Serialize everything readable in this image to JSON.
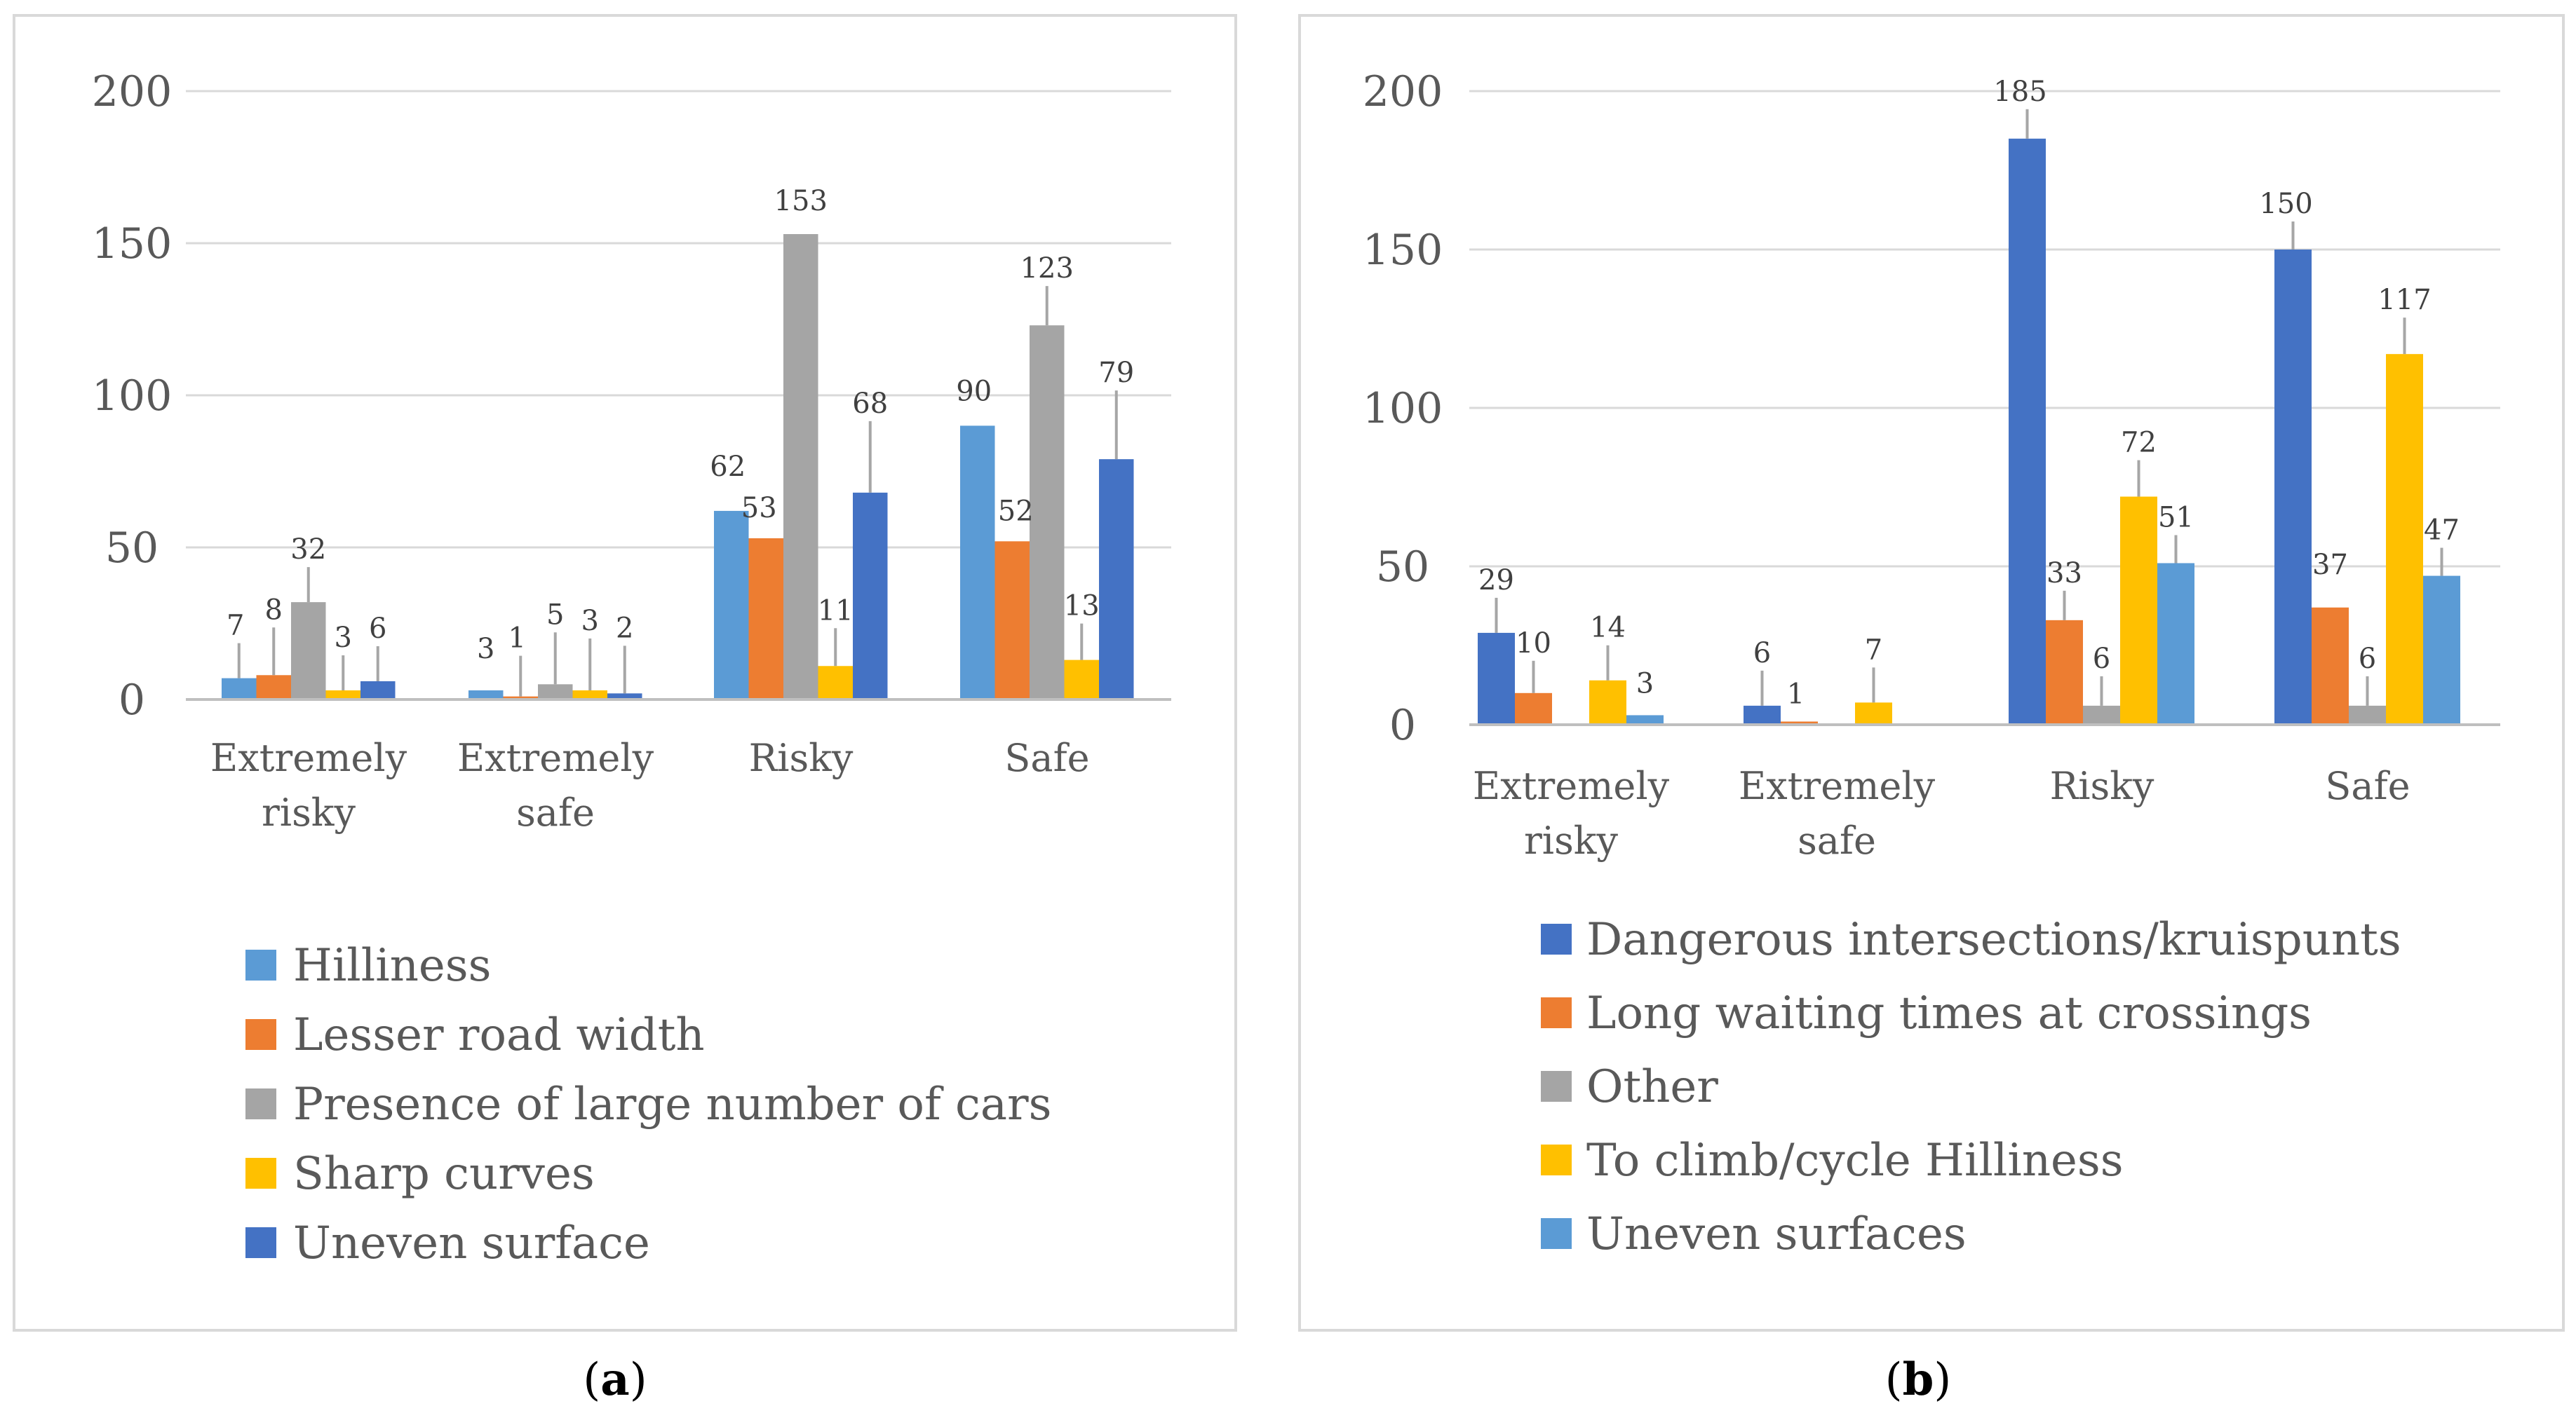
{
  "captions": {
    "a_open": "(",
    "a_letter": "a",
    "a_close": ")",
    "b_open": "(",
    "b_letter": "b",
    "b_close": ")"
  },
  "chart_data": [
    {
      "id": "a",
      "type": "bar",
      "categories": [
        [
          "Extremely",
          "risky"
        ],
        [
          "Extremely",
          "safe"
        ],
        [
          "Risky"
        ],
        [
          "Safe"
        ]
      ],
      "yticks": [
        0,
        50,
        100,
        150,
        200
      ],
      "ylim": [
        0,
        200
      ],
      "series": [
        {
          "name": "Hilliness",
          "color": "#5B9BD5",
          "values": [
            7,
            3,
            62,
            90
          ]
        },
        {
          "name": "Lesser road width",
          "color": "#ED7D31",
          "values": [
            8,
            1,
            53,
            52
          ]
        },
        {
          "name": "Presence of large number of cars",
          "color": "#A5A5A5",
          "values": [
            32,
            5,
            153,
            123
          ]
        },
        {
          "name": "Sharp curves",
          "color": "#FFC000",
          "values": [
            3,
            3,
            11,
            13
          ]
        },
        {
          "name": "Uneven surface",
          "color": "#4472C4",
          "values": [
            6,
            2,
            68,
            79
          ]
        }
      ]
    },
    {
      "id": "b",
      "type": "bar",
      "categories": [
        [
          "Extremely",
          "risky"
        ],
        [
          "Extremely",
          "safe"
        ],
        [
          "Risky"
        ],
        [
          "Safe"
        ]
      ],
      "yticks": [
        0,
        50,
        100,
        150,
        200
      ],
      "ylim": [
        0,
        200
      ],
      "series": [
        {
          "name": "Dangerous intersections/kruispunts",
          "color": "#4472C4",
          "values": [
            29,
            6,
            185,
            150
          ]
        },
        {
          "name": "Long waiting times at crossings",
          "color": "#ED7D31",
          "values": [
            10,
            1,
            33,
            37
          ]
        },
        {
          "name": "Other",
          "color": "#A5A5A5",
          "values": [
            null,
            null,
            6,
            6
          ]
        },
        {
          "name": "To climb/cycle Hilliness",
          "color": "#FFC000",
          "values": [
            14,
            7,
            72,
            117
          ]
        },
        {
          "name": "Uneven surfaces",
          "color": "#5B9BD5",
          "values": [
            3,
            null,
            51,
            47
          ]
        }
      ]
    }
  ]
}
